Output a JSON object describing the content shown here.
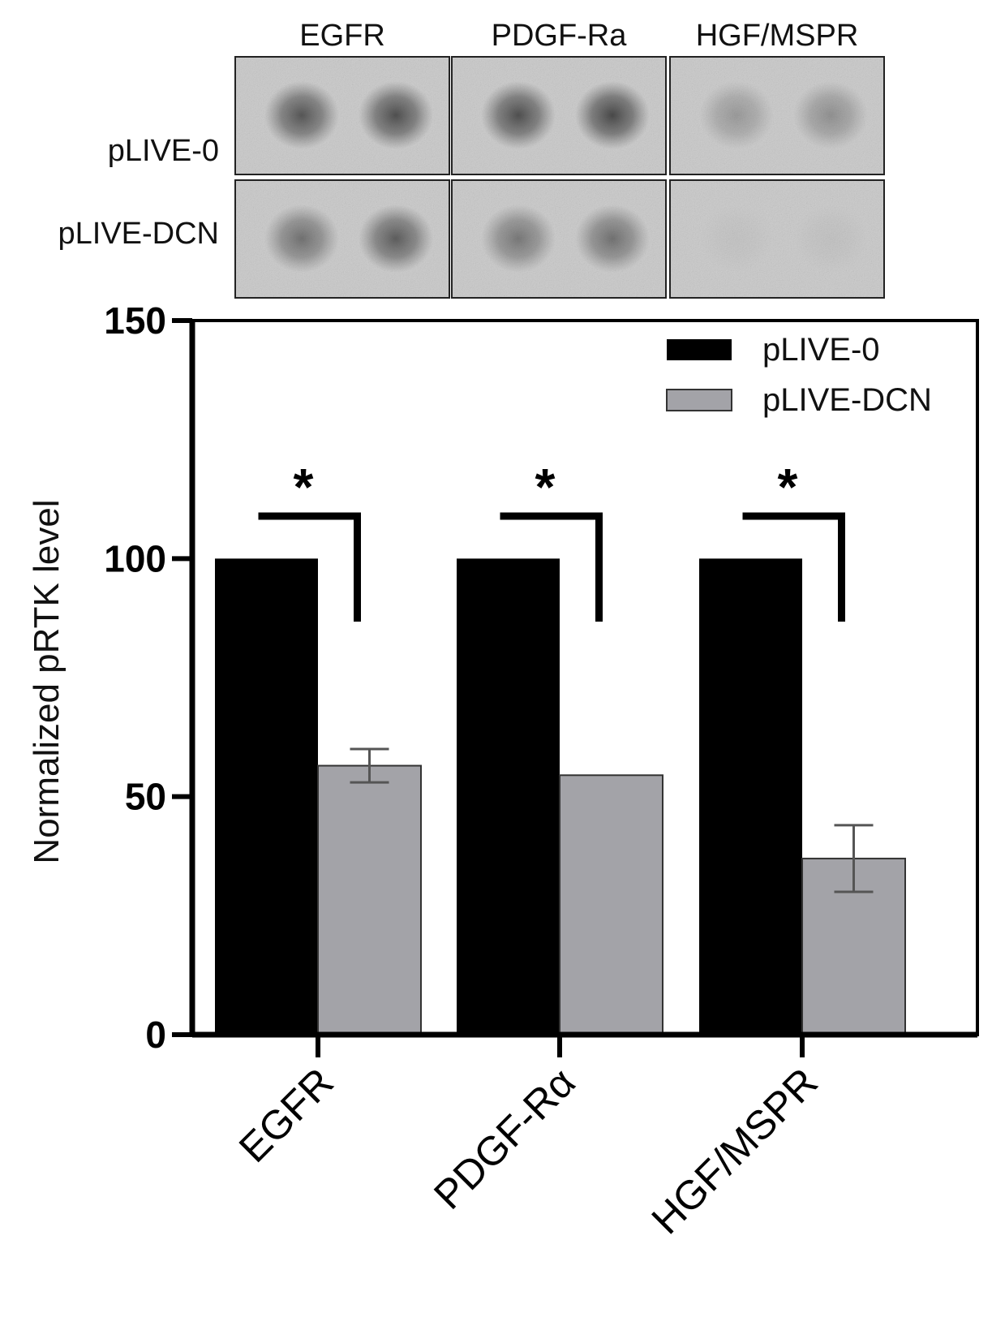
{
  "blot": {
    "column_labels": [
      "EGFR",
      "PDGF-Ra",
      "HGF/MSPR"
    ],
    "row_labels": [
      "pLIVE-0",
      "pLIVE-DCN"
    ],
    "spot_intensity": [
      [
        0.85,
        0.9,
        0.9,
        0.95,
        0.35,
        0.42
      ],
      [
        0.65,
        0.8,
        0.6,
        0.65,
        0.05,
        0.06
      ]
    ]
  },
  "chart_data": {
    "type": "bar",
    "categories": [
      "EGFR",
      "PDGF-Rα",
      "HGF/MSPR"
    ],
    "series": [
      {
        "name": "pLIVE-0",
        "values": [
          100,
          100,
          100
        ],
        "errors": [
          0,
          0,
          0
        ],
        "color": "#000000"
      },
      {
        "name": "pLIVE-DCN",
        "values": [
          56.5,
          54.5,
          37
        ],
        "errors": [
          3.5,
          0,
          7
        ],
        "color": "#a3a3a8"
      }
    ],
    "ylabel": "Normalized pRTK level",
    "xlabel": "",
    "ylim": [
      0,
      150
    ],
    "yticks": [
      0,
      50,
      100,
      150
    ],
    "legend_position": "top-right",
    "significance": [
      {
        "category": "EGFR",
        "label": "*"
      },
      {
        "category": "PDGF-Rα",
        "label": "*"
      },
      {
        "category": "HGF/MSPR",
        "label": "*"
      }
    ]
  }
}
